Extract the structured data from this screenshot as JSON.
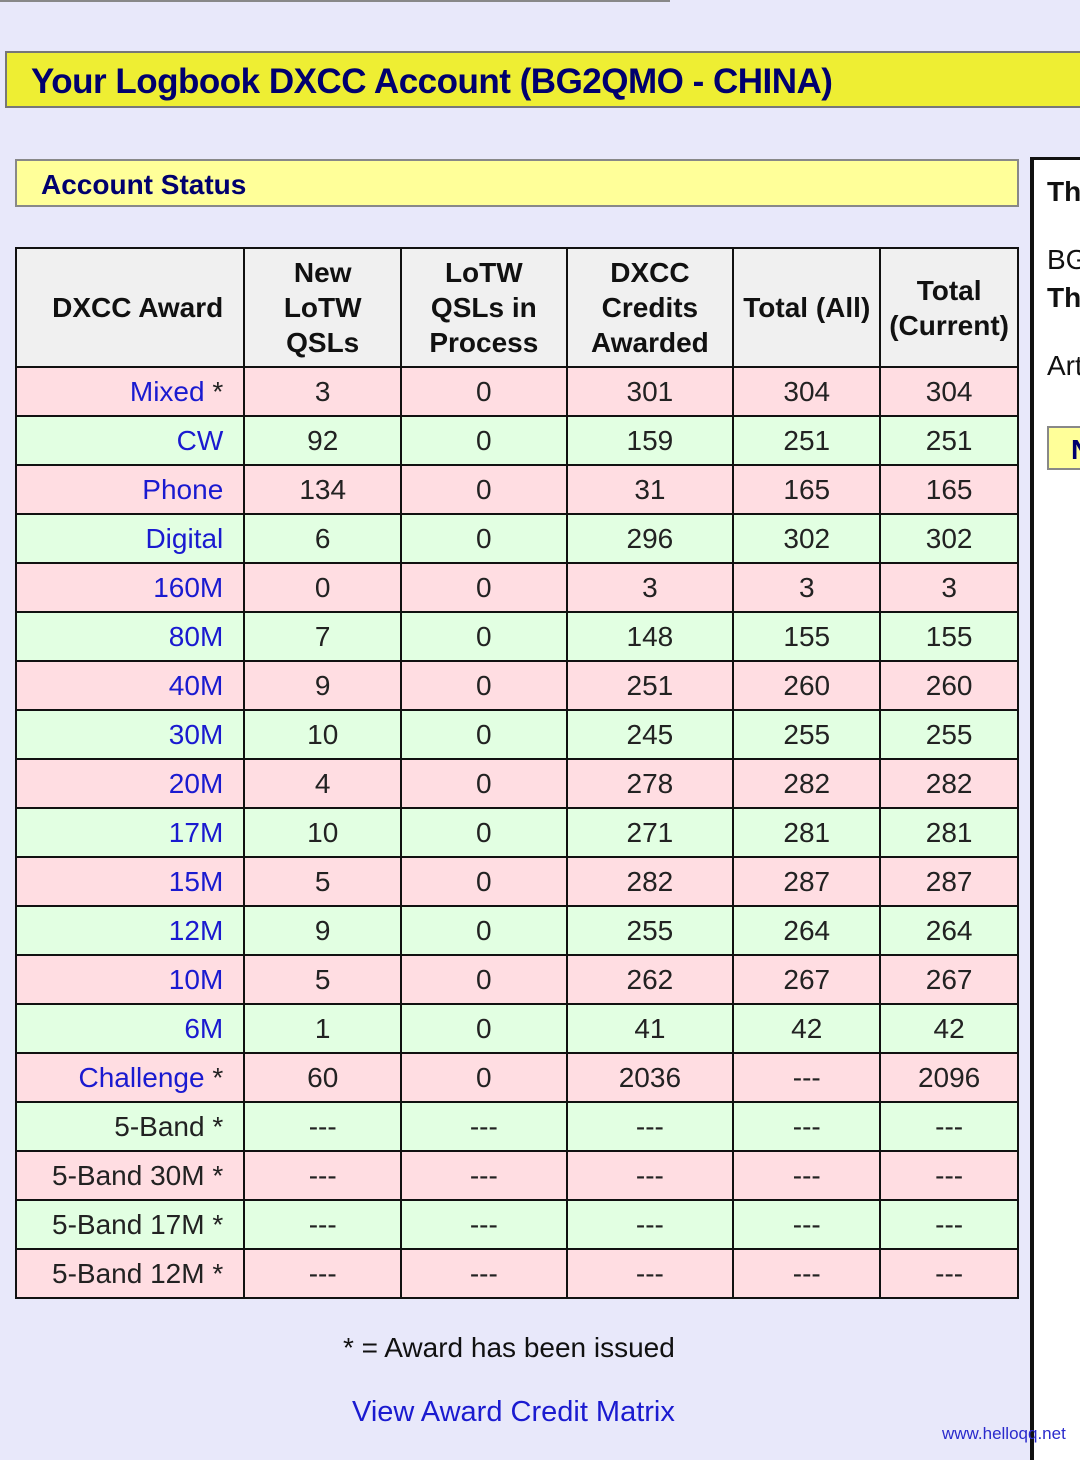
{
  "header": {
    "title": "Your Logbook DXCC Account (BG2QMO - CHINA)"
  },
  "section": {
    "title": "Account Status"
  },
  "table": {
    "columns": [
      "DXCC Award",
      "New LoTW QSLs",
      "LoTW QSLs in Process",
      "DXCC Credits Awarded",
      "Total (All)",
      "Total (Current)"
    ],
    "rows": [
      {
        "award": "Mixed",
        "issued": true,
        "cells": [
          "3",
          "0",
          "301",
          "304",
          "304"
        ]
      },
      {
        "award": "CW",
        "issued": false,
        "cells": [
          "92",
          "0",
          "159",
          "251",
          "251"
        ]
      },
      {
        "award": "Phone",
        "issued": false,
        "cells": [
          "134",
          "0",
          "31",
          "165",
          "165"
        ]
      },
      {
        "award": "Digital",
        "issued": false,
        "cells": [
          "6",
          "0",
          "296",
          "302",
          "302"
        ]
      },
      {
        "award": "160M",
        "issued": false,
        "cells": [
          "0",
          "0",
          "3",
          "3",
          "3"
        ]
      },
      {
        "award": "80M",
        "issued": false,
        "cells": [
          "7",
          "0",
          "148",
          "155",
          "155"
        ]
      },
      {
        "award": "40M",
        "issued": false,
        "cells": [
          "9",
          "0",
          "251",
          "260",
          "260"
        ]
      },
      {
        "award": "30M",
        "issued": false,
        "cells": [
          "10",
          "0",
          "245",
          "255",
          "255"
        ]
      },
      {
        "award": "20M",
        "issued": false,
        "cells": [
          "4",
          "0",
          "278",
          "282",
          "282"
        ]
      },
      {
        "award": "17M",
        "issued": false,
        "cells": [
          "10",
          "0",
          "271",
          "281",
          "281"
        ]
      },
      {
        "award": "15M",
        "issued": false,
        "cells": [
          "5",
          "0",
          "282",
          "287",
          "287"
        ]
      },
      {
        "award": "12M",
        "issued": false,
        "cells": [
          "9",
          "0",
          "255",
          "264",
          "264"
        ]
      },
      {
        "award": "10M",
        "issued": false,
        "cells": [
          "5",
          "0",
          "262",
          "267",
          "267"
        ]
      },
      {
        "award": "6M",
        "issued": false,
        "cells": [
          "1",
          "0",
          "41",
          "42",
          "42"
        ]
      },
      {
        "award": "Challenge",
        "issued": true,
        "cells": [
          "60",
          "0",
          "2036",
          "---",
          "2096"
        ]
      },
      {
        "award": "5-Band",
        "issued": true,
        "plain": true,
        "cells": [
          "---",
          "---",
          "---",
          "---",
          "---"
        ]
      },
      {
        "award": "5-Band 30M",
        "issued": true,
        "plain": true,
        "cells": [
          "---",
          "---",
          "---",
          "---",
          "---"
        ]
      },
      {
        "award": "5-Band 17M",
        "issued": true,
        "plain": true,
        "cells": [
          "---",
          "---",
          "---",
          "---",
          "---"
        ]
      },
      {
        "award": "5-Band 12M",
        "issued": true,
        "plain": true,
        "cells": [
          "---",
          "---",
          "---",
          "---",
          "---"
        ]
      }
    ]
  },
  "legend": "* = Award has been issued",
  "matrix_link": "View Award Credit Matrix",
  "side_panel": {
    "line1": "Th",
    "line2": "BG",
    "line3": "Th",
    "line4": "Art",
    "button": "N"
  },
  "watermark": "www.helloqq.net",
  "colors": {
    "row_pink": "#ffdde2",
    "row_green": "#e2ffe2",
    "title_bg": "#eeee33",
    "link": "#1a1ad0"
  }
}
